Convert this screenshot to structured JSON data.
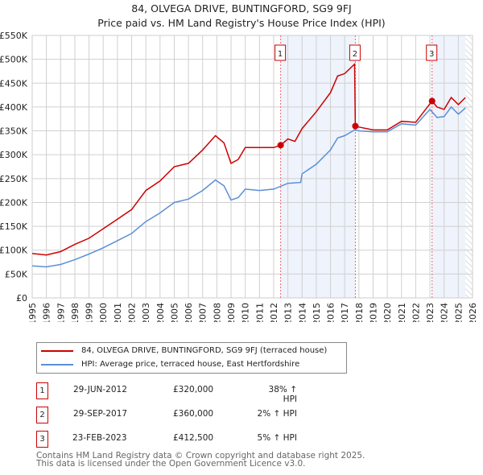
{
  "chart_data": {
    "type": "line",
    "title": "84, OLVEGA DRIVE, BUNTINGFORD, SG9 9FJ",
    "subtitle": "Price paid vs. HM Land Registry's House Price Index (HPI)",
    "xlim": [
      1995,
      2026
    ],
    "ylim": [
      0,
      550000
    ],
    "x_ticks": [
      "1995",
      "1996",
      "1997",
      "1998",
      "1999",
      "2000",
      "2001",
      "2002",
      "2003",
      "2004",
      "2005",
      "2006",
      "2007",
      "2008",
      "2009",
      "2010",
      "2011",
      "2012",
      "2013",
      "2014",
      "2015",
      "2016",
      "2017",
      "2018",
      "2019",
      "2020",
      "2021",
      "2022",
      "2023",
      "2024",
      "2025",
      "2026"
    ],
    "y_ticks": [
      {
        "v": 0,
        "label": "£0"
      },
      {
        "v": 50000,
        "label": "£50K"
      },
      {
        "v": 100000,
        "label": "£100K"
      },
      {
        "v": 150000,
        "label": "£150K"
      },
      {
        "v": 200000,
        "label": "£200K"
      },
      {
        "v": 250000,
        "label": "£250K"
      },
      {
        "v": 300000,
        "label": "£300K"
      },
      {
        "v": 350000,
        "label": "£350K"
      },
      {
        "v": 400000,
        "label": "£400K"
      },
      {
        "v": 450000,
        "label": "£450K"
      },
      {
        "v": 500000,
        "label": "£500K"
      },
      {
        "v": 550000,
        "label": "£550K"
      }
    ],
    "grid": true,
    "series": [
      {
        "name": "84, OLVEGA DRIVE, BUNTINGFORD, SG9 9FJ (terraced house)",
        "color": "#cc0000",
        "x": [
          1995,
          1996,
          1997,
          1998,
          1999,
          2000,
          2001,
          2002,
          2003,
          2004,
          2005,
          2006,
          2007,
          2007.9,
          2008.5,
          2009,
          2009.5,
          2010,
          2011,
          2012,
          2012.5,
          2013,
          2013.5,
          2014,
          2015,
          2016,
          2016.5,
          2017,
          2017.7,
          2017.75,
          2018,
          2019,
          2020,
          2021,
          2022,
          2023.15,
          2023.5,
          2024,
          2024.5,
          2025,
          2025.5
        ],
        "y": [
          93000,
          90000,
          97000,
          112000,
          125000,
          145000,
          165000,
          185000,
          225000,
          245000,
          275000,
          282000,
          310000,
          340000,
          325000,
          282000,
          290000,
          315000,
          315000,
          315000,
          320000,
          333000,
          328000,
          355000,
          390000,
          430000,
          465000,
          470000,
          490000,
          360000,
          358000,
          352000,
          352000,
          370000,
          368000,
          412500,
          400000,
          395000,
          420000,
          405000,
          420000
        ]
      },
      {
        "name": "HPI: Average price, terraced house, East Hertfordshire",
        "color": "#5b8fd6",
        "x": [
          1995,
          1996,
          1997,
          1998,
          1999,
          2000,
          2001,
          2002,
          2003,
          2004,
          2005,
          2006,
          2007,
          2007.9,
          2008.5,
          2009,
          2009.5,
          2010,
          2011,
          2012,
          2013,
          2013.9,
          2014,
          2015,
          2016,
          2016.5,
          2017,
          2017.7,
          2018,
          2019,
          2020,
          2021,
          2022,
          2023,
          2023.5,
          2024,
          2024.5,
          2025,
          2025.5
        ],
        "y": [
          67000,
          65000,
          70000,
          80000,
          92000,
          105000,
          120000,
          135000,
          160000,
          178000,
          200000,
          207000,
          225000,
          247000,
          235000,
          205000,
          210000,
          228000,
          225000,
          228000,
          240000,
          242000,
          260000,
          280000,
          310000,
          335000,
          340000,
          352000,
          350000,
          348000,
          348000,
          365000,
          362000,
          395000,
          378000,
          380000,
          400000,
          385000,
          398000
        ]
      }
    ],
    "sales": [
      {
        "id": "1",
        "x": 2012.49,
        "y": 320000,
        "date": "29-JUN-2012",
        "price": "£320,000",
        "hpi": "38% ↑ HPI"
      },
      {
        "id": "2",
        "x": 2017.75,
        "y": 360000,
        "date": "29-SEP-2017",
        "price": "£360,000",
        "hpi": "2% ↑ HPI"
      },
      {
        "id": "3",
        "x": 2023.15,
        "y": 412500,
        "date": "23-FEB-2023",
        "price": "£412,500",
        "hpi": "5% ↑ HPI"
      }
    ],
    "shaded": [
      [
        2012.49,
        2017.75
      ],
      [
        2023.15,
        2025.5
      ]
    ],
    "hatched_from": 2025.5,
    "legend_placement": "below"
  },
  "footer": [
    "Contains HM Land Registry data © Crown copyright and database right 2025.",
    "This data is licensed under the Open Government Licence v3.0."
  ]
}
